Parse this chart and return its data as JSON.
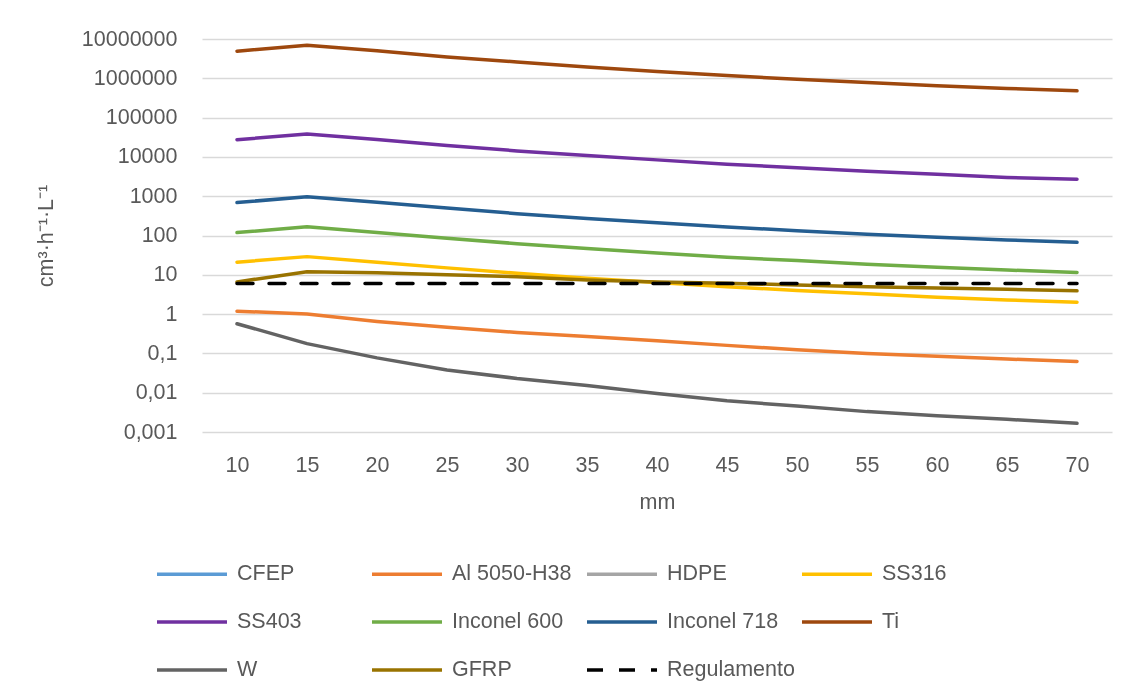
{
  "chart_data": {
    "type": "line",
    "xlabel": "mm",
    "ylabel": "cm³·h⁻¹·L⁻¹",
    "categories": [
      "10",
      "15",
      "20",
      "25",
      "30",
      "35",
      "40",
      "45",
      "50",
      "55",
      "60",
      "65",
      "70"
    ],
    "log": "y",
    "ylim": [
      0.001,
      10000000
    ],
    "yticks": [
      {
        "value": 0.001,
        "label": "0,001"
      },
      {
        "value": 0.01,
        "label": "0,01"
      },
      {
        "value": 0.1,
        "label": "0,1"
      },
      1,
      10,
      100,
      1000,
      10000,
      100000,
      1000000,
      10000000
    ],
    "grid": "y",
    "legend": "bottom",
    "line_style": "solid",
    "series": [
      {
        "name": "CFEP",
        "color": "#5b9bd5",
        "values": [
          null,
          null,
          null,
          null,
          null,
          null,
          null,
          null,
          null,
          null,
          null,
          null,
          null
        ]
      },
      {
        "name": "Al 5050-H38",
        "color": "#ed7d31",
        "values": [
          1.19,
          1.0,
          0.65,
          0.46,
          0.34,
          0.27,
          0.21,
          0.16,
          0.124,
          0.1,
          0.085,
          0.072,
          0.062
        ]
      },
      {
        "name": "HDPE",
        "color": "#a5a5a5",
        "values": [
          null,
          null,
          null,
          null,
          null,
          null,
          null,
          null,
          null,
          null,
          null,
          null,
          null
        ]
      },
      {
        "name": "SS316",
        "color": "#ffc000",
        "values": [
          21,
          29,
          21,
          15,
          10.9,
          8.2,
          6.4,
          5.0,
          4.0,
          3.3,
          2.7,
          2.3,
          2.0
        ]
      },
      {
        "name": "SS403",
        "color": "#7030a0",
        "values": [
          27400,
          38300,
          27700,
          19600,
          14200,
          10800,
          8400,
          6500,
          5300,
          4300,
          3600,
          3000,
          2700
        ]
      },
      {
        "name": "Inconel 600",
        "color": "#70ad47",
        "values": [
          119,
          166,
          120,
          85,
          62,
          47,
          36,
          28,
          23,
          18.6,
          15.5,
          13.2,
          11.5
        ]
      },
      {
        "name": "Inconel 718",
        "color": "#255e91",
        "values": [
          690,
          970,
          700,
          500,
          360,
          270,
          210,
          165,
          133,
          108,
          90,
          77,
          67
        ]
      },
      {
        "name": "Ti",
        "color": "#9e480e",
        "values": [
          4900000,
          6900000,
          5000000,
          3500000,
          2600000,
          1950000,
          1500000,
          1170000,
          950000,
          780000,
          650000,
          550000,
          480000
        ]
      },
      {
        "name": "W",
        "color": "#636363",
        "values": [
          0.57,
          0.177,
          0.077,
          0.038,
          0.023,
          0.0153,
          0.0095,
          0.0062,
          0.0046,
          0.0033,
          0.0026,
          0.0021,
          0.00166
        ]
      },
      {
        "name": "GFRP",
        "color": "#997300",
        "values": [
          6.6,
          12.0,
          11.2,
          10,
          8.9,
          7.4,
          6.6,
          6.1,
          5.5,
          5.0,
          4.6,
          4.3,
          3.9
        ]
      },
      {
        "name": "Regulamento",
        "color": "#000000",
        "line_style": "dashed",
        "values": [
          6,
          6,
          6,
          6,
          6,
          6,
          6,
          6,
          6,
          6,
          6,
          6,
          6
        ]
      }
    ]
  }
}
